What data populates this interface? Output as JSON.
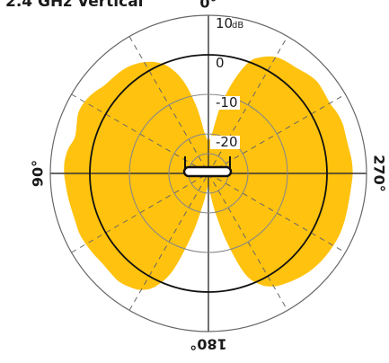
{
  "chart_data": {
    "type": "polar",
    "title": "2.4 GHz Vertical",
    "radial_unit": "dB",
    "rings": [
      {
        "level": 10,
        "label": "10"
      },
      {
        "level": 0,
        "label": "0"
      },
      {
        "level": -10,
        "label": "-10"
      },
      {
        "level": -20,
        "label": "-20"
      }
    ],
    "angle_labels": [
      {
        "angle": 0,
        "text": "0°"
      },
      {
        "angle": 90,
        "text": "90°"
      },
      {
        "angle": 180,
        "text": "180°"
      },
      {
        "angle": 270,
        "text": "270°"
      }
    ],
    "radial_range": [
      -30,
      10
    ],
    "angular_grid_step_deg": 30,
    "fill_color": "#FFC20E",
    "series": [
      {
        "angles_deg": [
          0,
          5,
          10,
          15,
          20,
          25,
          30,
          35,
          40,
          45,
          50,
          55,
          60,
          65,
          70,
          75,
          80,
          85,
          90,
          95,
          100,
          105,
          110,
          115,
          120,
          125,
          130,
          135,
          140,
          145,
          150,
          155,
          160,
          165,
          170,
          175,
          180,
          185,
          190,
          195,
          200,
          205,
          210,
          215,
          220,
          225,
          230,
          235,
          240,
          245,
          250,
          255,
          260,
          265,
          270,
          275,
          280,
          285,
          290,
          295,
          300,
          305,
          310,
          315,
          320,
          325,
          330,
          335,
          340,
          345,
          350,
          355
        ],
        "gain_db": [
          -21.5,
          -20,
          -13,
          -6,
          -1.5,
          1,
          2.5,
          3.5,
          4,
          4.2,
          4.5,
          5.5,
          6.2,
          6.3,
          5.5,
          5,
          6,
          6.5,
          6.5,
          6.2,
          6,
          5.8,
          5.8,
          6,
          5.8,
          5.5,
          5.2,
          5.3,
          5.5,
          5,
          4,
          1.5,
          -4,
          -14,
          -22,
          -26,
          -27,
          -25,
          -20,
          -12,
          -3,
          1,
          3,
          4,
          4.8,
          5.5,
          6,
          6.3,
          6.5,
          6.6,
          6.5,
          6.3,
          6.2,
          6.3,
          6.5,
          6.4,
          6.1,
          6,
          6.2,
          6,
          5.5,
          5.7,
          6,
          5.5,
          4.8,
          4.5,
          4,
          2.5,
          0,
          -6,
          -13,
          -20
        ]
      }
    ]
  }
}
